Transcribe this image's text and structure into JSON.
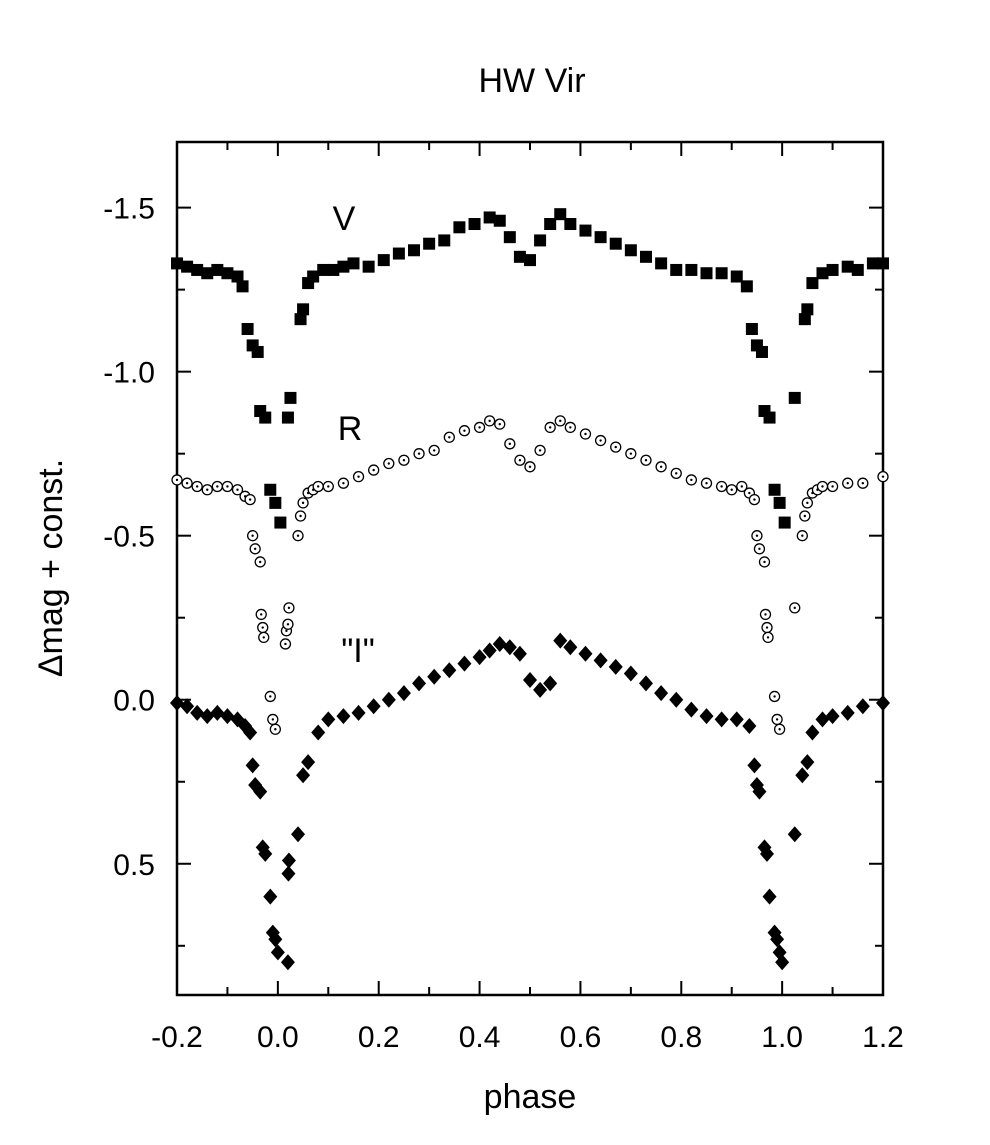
{
  "chart_data": {
    "type": "scatter",
    "title": "HW Vir",
    "x_label": "phase",
    "y_label": "Δmag + const.",
    "xlim": [
      -0.2,
      1.2
    ],
    "ylim": [
      -1.7,
      0.9
    ],
    "y_inverted": true,
    "xticks": [
      -0.2,
      {
        "value": 0,
        "label": "0.0"
      },
      0.2,
      0.4,
      0.6,
      0.8,
      {
        "value": 1,
        "label": "1.0"
      },
      1.2
    ],
    "xminorticks": [
      -0.1,
      0.1,
      0.3,
      0.5,
      0.7,
      0.9,
      1.1
    ],
    "yticks": [
      -1.5,
      {
        "value": -1,
        "label": "-1.0"
      },
      -0.5,
      {
        "value": 0,
        "label": "0.0"
      },
      0.5
    ],
    "yminorticks": [
      -1.25,
      -0.75,
      -0.25,
      0.25,
      0.75
    ],
    "annotations": [
      "V",
      "R",
      "\"I\""
    ],
    "series": [
      {
        "name": "V",
        "marker": "square",
        "color": "#000000",
        "x": [
          -0.2,
          -0.18,
          -0.16,
          -0.14,
          -0.12,
          -0.1,
          -0.08,
          -0.07,
          -0.06,
          -0.05,
          -0.04,
          -0.035,
          -0.025,
          -0.015,
          -0.005,
          0.005,
          0.02,
          0.025,
          0.045,
          0.05,
          0.06,
          0.07,
          0.09,
          0.11,
          0.13,
          0.15,
          0.18,
          0.21,
          0.24,
          0.27,
          0.3,
          0.33,
          0.36,
          0.39,
          0.42,
          0.44,
          0.46,
          0.48,
          0.5,
          0.52,
          0.54,
          0.56,
          0.58,
          0.61,
          0.64,
          0.67,
          0.7,
          0.73,
          0.76,
          0.79,
          0.82,
          0.85,
          0.88,
          0.91,
          0.93,
          0.94,
          0.95,
          0.96,
          0.965,
          0.975,
          0.985,
          0.995,
          1.005,
          1.025,
          1.045,
          1.05,
          1.06,
          1.08,
          1.1,
          1.13,
          1.15,
          1.18,
          1.2
        ],
        "values": [
          -1.33,
          -1.32,
          -1.31,
          -1.3,
          -1.31,
          -1.3,
          -1.29,
          -1.26,
          -1.13,
          -1.08,
          -1.06,
          -0.88,
          -0.86,
          -0.64,
          -0.6,
          -0.54,
          -0.86,
          -0.92,
          -1.16,
          -1.19,
          -1.27,
          -1.29,
          -1.31,
          -1.31,
          -1.32,
          -1.33,
          -1.32,
          -1.34,
          -1.36,
          -1.37,
          -1.39,
          -1.4,
          -1.44,
          -1.45,
          -1.47,
          -1.46,
          -1.41,
          -1.35,
          -1.34,
          -1.4,
          -1.45,
          -1.48,
          -1.45,
          -1.43,
          -1.41,
          -1.39,
          -1.37,
          -1.35,
          -1.33,
          -1.31,
          -1.31,
          -1.3,
          -1.3,
          -1.29,
          -1.26,
          -1.13,
          -1.08,
          -1.06,
          -0.88,
          -0.86,
          -0.64,
          -0.6,
          -0.54,
          -0.92,
          -1.16,
          -1.19,
          -1.27,
          -1.3,
          -1.31,
          -1.32,
          -1.31,
          -1.33,
          -1.33
        ]
      },
      {
        "name": "R",
        "marker": "circle",
        "color": "#000000",
        "x": [
          -0.2,
          -0.18,
          -0.16,
          -0.14,
          -0.12,
          -0.1,
          -0.08,
          -0.065,
          -0.055,
          -0.05,
          -0.045,
          -0.035,
          -0.033,
          -0.03,
          -0.028,
          -0.015,
          -0.01,
          -0.005,
          0.015,
          0.017,
          0.02,
          0.022,
          0.04,
          0.045,
          0.05,
          0.06,
          0.07,
          0.08,
          0.1,
          0.13,
          0.16,
          0.19,
          0.22,
          0.25,
          0.28,
          0.31,
          0.34,
          0.37,
          0.4,
          0.42,
          0.44,
          0.46,
          0.48,
          0.5,
          0.52,
          0.54,
          0.56,
          0.58,
          0.61,
          0.64,
          0.67,
          0.7,
          0.73,
          0.76,
          0.79,
          0.82,
          0.85,
          0.88,
          0.9,
          0.92,
          0.935,
          0.945,
          0.95,
          0.955,
          0.965,
          0.967,
          0.97,
          0.972,
          0.985,
          0.99,
          0.995,
          1.025,
          1.04,
          1.045,
          1.05,
          1.06,
          1.07,
          1.08,
          1.1,
          1.13,
          1.16,
          1.2
        ],
        "values": [
          -0.67,
          -0.66,
          -0.65,
          -0.64,
          -0.65,
          -0.65,
          -0.64,
          -0.62,
          -0.61,
          -0.5,
          -0.46,
          -0.42,
          -0.26,
          -0.22,
          -0.19,
          -0.01,
          0.06,
          0.09,
          -0.17,
          -0.21,
          -0.23,
          -0.28,
          -0.5,
          -0.56,
          -0.6,
          -0.63,
          -0.64,
          -0.65,
          -0.65,
          -0.66,
          -0.68,
          -0.7,
          -0.72,
          -0.73,
          -0.75,
          -0.76,
          -0.8,
          -0.82,
          -0.83,
          -0.85,
          -0.84,
          -0.78,
          -0.73,
          -0.71,
          -0.76,
          -0.83,
          -0.85,
          -0.83,
          -0.81,
          -0.79,
          -0.77,
          -0.75,
          -0.73,
          -0.71,
          -0.69,
          -0.67,
          -0.66,
          -0.65,
          -0.64,
          -0.65,
          -0.63,
          -0.61,
          -0.5,
          -0.46,
          -0.42,
          -0.26,
          -0.22,
          -0.19,
          -0.01,
          0.06,
          0.09,
          -0.28,
          -0.5,
          -0.56,
          -0.6,
          -0.63,
          -0.64,
          -0.65,
          -0.65,
          -0.66,
          -0.66,
          -0.68
        ]
      },
      {
        "name": "\"I\"",
        "marker": "diamond",
        "color": "#000000",
        "x": [
          -0.2,
          -0.18,
          -0.16,
          -0.14,
          -0.12,
          -0.1,
          -0.08,
          -0.065,
          -0.055,
          -0.05,
          -0.045,
          -0.035,
          -0.03,
          -0.025,
          -0.015,
          -0.01,
          -0.005,
          0.0,
          0.02,
          0.021,
          0.022,
          0.04,
          0.05,
          0.06,
          0.08,
          0.1,
          0.13,
          0.16,
          0.19,
          0.22,
          0.25,
          0.28,
          0.31,
          0.34,
          0.37,
          0.4,
          0.42,
          0.44,
          0.46,
          0.48,
          0.5,
          0.52,
          0.54,
          0.56,
          0.58,
          0.61,
          0.64,
          0.67,
          0.7,
          0.73,
          0.76,
          0.79,
          0.82,
          0.85,
          0.88,
          0.91,
          0.935,
          0.945,
          0.95,
          0.955,
          0.965,
          0.97,
          0.975,
          0.985,
          0.99,
          0.995,
          1.0,
          1.025,
          1.04,
          1.05,
          1.06,
          1.08,
          1.1,
          1.13,
          1.16,
          1.2
        ],
        "values": [
          0.01,
          0.02,
          0.04,
          0.05,
          0.04,
          0.05,
          0.06,
          0.08,
          0.1,
          0.2,
          0.26,
          0.28,
          0.45,
          0.47,
          0.6,
          0.71,
          0.73,
          0.77,
          0.8,
          0.53,
          0.49,
          0.41,
          0.23,
          0.19,
          0.1,
          0.06,
          0.05,
          0.04,
          0.02,
          0.0,
          -0.02,
          -0.05,
          -0.07,
          -0.09,
          -0.11,
          -0.13,
          -0.15,
          -0.17,
          -0.16,
          -0.14,
          -0.06,
          -0.03,
          -0.05,
          -0.18,
          -0.16,
          -0.14,
          -0.12,
          -0.1,
          -0.08,
          -0.05,
          -0.02,
          0.0,
          0.03,
          0.05,
          0.06,
          0.06,
          0.08,
          0.2,
          0.26,
          0.28,
          0.45,
          0.47,
          0.6,
          0.71,
          0.73,
          0.77,
          0.8,
          0.41,
          0.23,
          0.19,
          0.1,
          0.06,
          0.05,
          0.04,
          0.02,
          0.01
        ]
      }
    ]
  }
}
